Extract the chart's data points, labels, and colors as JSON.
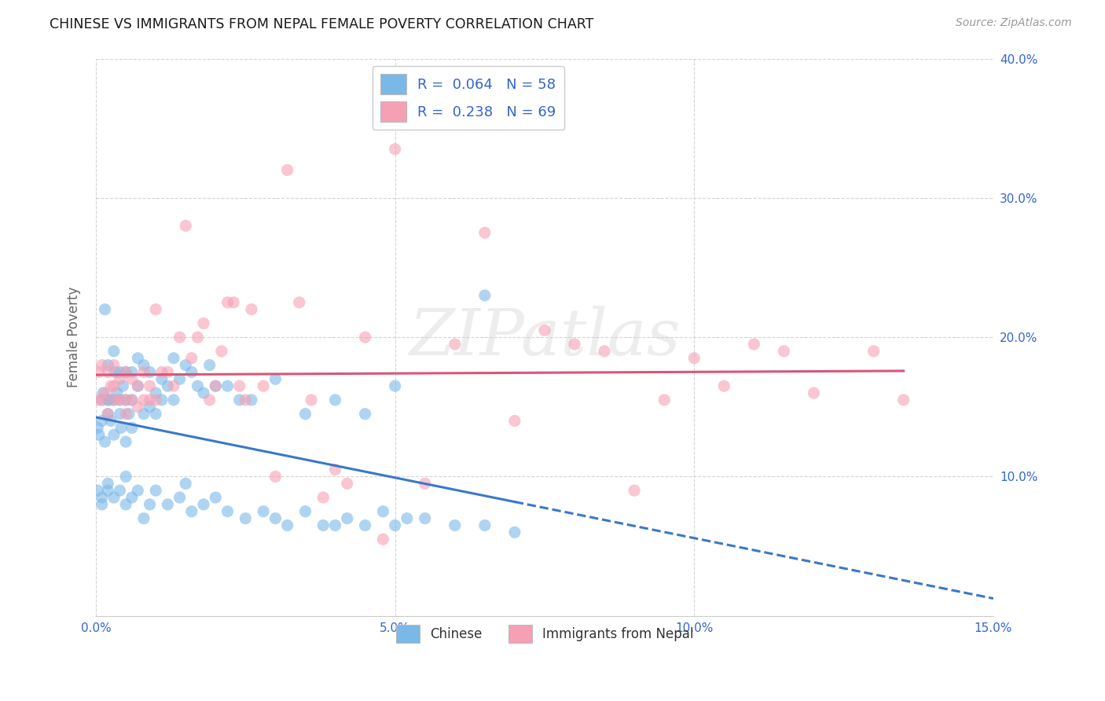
{
  "title": "CHINESE VS IMMIGRANTS FROM NEPAL FEMALE POVERTY CORRELATION CHART",
  "source": "Source: ZipAtlas.com",
  "ylabel": "Female Poverty",
  "watermark": "ZIPatlas",
  "x_min": 0.0,
  "x_max": 0.15,
  "y_min": 0.0,
  "y_max": 0.4,
  "x_ticks": [
    0.0,
    0.05,
    0.1,
    0.15
  ],
  "x_tick_labels": [
    "0.0%",
    "5.0%",
    "10.0%",
    "15.0%"
  ],
  "y_ticks": [
    0.0,
    0.1,
    0.2,
    0.3,
    0.4
  ],
  "y_tick_labels": [
    "",
    "10.0%",
    "20.0%",
    "30.0%",
    "40.0%"
  ],
  "chinese_color": "#7ab8e8",
  "nepal_color": "#f5a0b5",
  "chinese_line_color": "#3a78c9",
  "nepal_line_color": "#d9567a",
  "chinese_R": 0.064,
  "chinese_N": 58,
  "nepal_R": 0.238,
  "nepal_N": 69,
  "legend_text_color": "#3366cc",
  "chinese_scatter_x": [
    0.0003,
    0.0005,
    0.001,
    0.001,
    0.0012,
    0.0015,
    0.0015,
    0.002,
    0.002,
    0.002,
    0.0022,
    0.0025,
    0.003,
    0.003,
    0.003,
    0.0032,
    0.0035,
    0.004,
    0.004,
    0.004,
    0.0042,
    0.0045,
    0.005,
    0.005,
    0.005,
    0.0055,
    0.006,
    0.006,
    0.006,
    0.007,
    0.007,
    0.008,
    0.008,
    0.009,
    0.009,
    0.01,
    0.01,
    0.011,
    0.011,
    0.012,
    0.013,
    0.013,
    0.014,
    0.015,
    0.016,
    0.017,
    0.018,
    0.019,
    0.02,
    0.022,
    0.024,
    0.026,
    0.03,
    0.035,
    0.04,
    0.045,
    0.05,
    0.065
  ],
  "chinese_scatter_y": [
    0.135,
    0.13,
    0.14,
    0.155,
    0.16,
    0.125,
    0.22,
    0.145,
    0.155,
    0.18,
    0.155,
    0.14,
    0.13,
    0.155,
    0.19,
    0.175,
    0.16,
    0.145,
    0.155,
    0.175,
    0.135,
    0.165,
    0.125,
    0.155,
    0.175,
    0.145,
    0.135,
    0.155,
    0.175,
    0.165,
    0.185,
    0.145,
    0.18,
    0.15,
    0.175,
    0.145,
    0.16,
    0.155,
    0.17,
    0.165,
    0.155,
    0.185,
    0.17,
    0.18,
    0.175,
    0.165,
    0.16,
    0.18,
    0.165,
    0.165,
    0.155,
    0.155,
    0.17,
    0.145,
    0.155,
    0.145,
    0.165,
    0.23
  ],
  "chinese_scatter_x2": [
    0.0003,
    0.001,
    0.001,
    0.002,
    0.002,
    0.003,
    0.004,
    0.005,
    0.005,
    0.006,
    0.007,
    0.008,
    0.009,
    0.01,
    0.012,
    0.014,
    0.015,
    0.016,
    0.018,
    0.02,
    0.022,
    0.025,
    0.028,
    0.03,
    0.032,
    0.035,
    0.038,
    0.04,
    0.042,
    0.045,
    0.048,
    0.05,
    0.052,
    0.055,
    0.06,
    0.065,
    0.07
  ],
  "chinese_scatter_y2": [
    0.09,
    0.08,
    0.085,
    0.09,
    0.095,
    0.085,
    0.09,
    0.08,
    0.1,
    0.085,
    0.09,
    0.07,
    0.08,
    0.09,
    0.08,
    0.085,
    0.095,
    0.075,
    0.08,
    0.085,
    0.075,
    0.07,
    0.075,
    0.07,
    0.065,
    0.075,
    0.065,
    0.065,
    0.07,
    0.065,
    0.075,
    0.065,
    0.07,
    0.07,
    0.065,
    0.065,
    0.06
  ],
  "nepal_scatter_x": [
    0.0003,
    0.0005,
    0.001,
    0.001,
    0.0015,
    0.002,
    0.002,
    0.0025,
    0.003,
    0.003,
    0.003,
    0.004,
    0.004,
    0.005,
    0.005,
    0.005,
    0.006,
    0.006,
    0.007,
    0.007,
    0.008,
    0.008,
    0.009,
    0.009,
    0.01,
    0.01,
    0.011,
    0.012,
    0.013,
    0.014,
    0.015,
    0.016,
    0.017,
    0.018,
    0.019,
    0.02,
    0.021,
    0.022,
    0.023,
    0.024,
    0.025,
    0.026,
    0.028,
    0.03,
    0.032,
    0.034,
    0.036,
    0.038,
    0.04,
    0.042,
    0.045,
    0.048,
    0.05,
    0.055,
    0.06,
    0.065,
    0.07,
    0.075,
    0.08,
    0.085,
    0.09,
    0.095,
    0.1,
    0.105,
    0.11,
    0.115,
    0.12,
    0.13,
    0.135
  ],
  "nepal_scatter_y": [
    0.155,
    0.175,
    0.155,
    0.18,
    0.16,
    0.145,
    0.175,
    0.165,
    0.155,
    0.165,
    0.18,
    0.155,
    0.17,
    0.145,
    0.155,
    0.175,
    0.155,
    0.17,
    0.15,
    0.165,
    0.155,
    0.175,
    0.165,
    0.155,
    0.155,
    0.22,
    0.175,
    0.175,
    0.165,
    0.2,
    0.28,
    0.185,
    0.2,
    0.21,
    0.155,
    0.165,
    0.19,
    0.225,
    0.225,
    0.165,
    0.155,
    0.22,
    0.165,
    0.1,
    0.32,
    0.225,
    0.155,
    0.085,
    0.105,
    0.095,
    0.2,
    0.055,
    0.335,
    0.095,
    0.195,
    0.275,
    0.14,
    0.205,
    0.195,
    0.19,
    0.09,
    0.155,
    0.185,
    0.165,
    0.195,
    0.19,
    0.16,
    0.19,
    0.155
  ]
}
